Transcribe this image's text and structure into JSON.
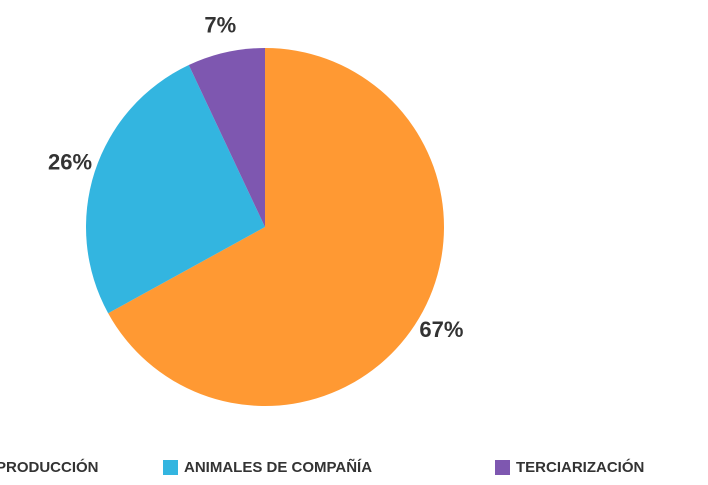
{
  "chart_data": {
    "type": "pie",
    "categories": [
      "PRODUCCIÓN",
      "ANIMALES DE COMPAÑÍA",
      "TERCIARIZACIÓN"
    ],
    "values": [
      67,
      26,
      7
    ],
    "value_labels": [
      "67%",
      "26%",
      "7%"
    ],
    "colors": [
      "#ff9933",
      "#33b5e0",
      "#7e57b0"
    ],
    "legend": "bottom"
  }
}
